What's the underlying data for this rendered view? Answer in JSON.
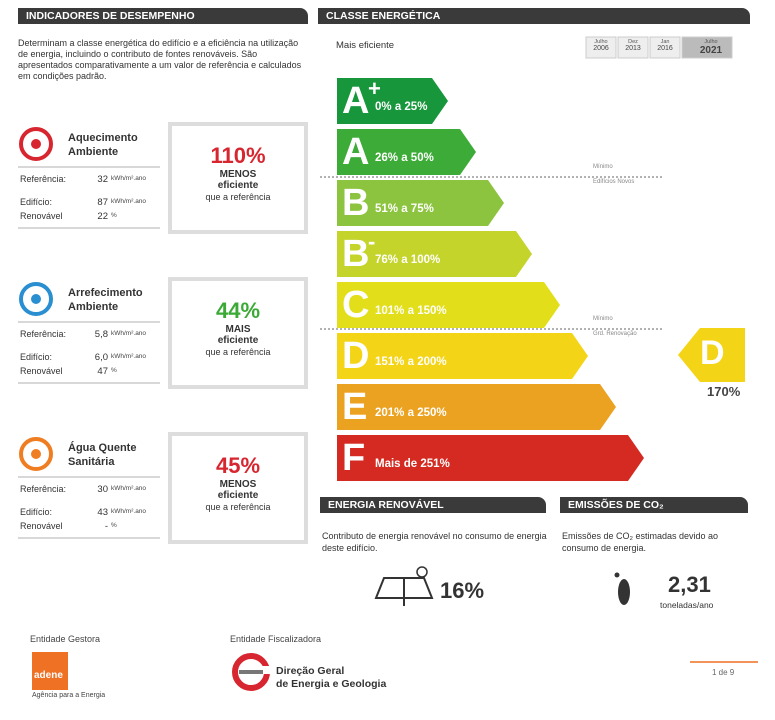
{
  "performance": {
    "title": "INDICADORES DE DESEMPENHO",
    "intro": "Determinam a classe energética do edifício e a eficiência na utilização de energia, incluindo o contributo de fontes renováveis. São apresentados comparativamente a um valor de referência e calculados em condições padrão.",
    "items": [
      {
        "name": "Aquecimento Ambiente",
        "rows": [
          {
            "label": "Referência:",
            "value": "32",
            "unit": "kWh/m².ano"
          },
          {
            "label": "Edifício:",
            "value": "87",
            "unit": "kWh/m².ano"
          },
          {
            "label": "Renovável",
            "value": "22",
            "unit": "%"
          }
        ],
        "percent": "110%",
        "comparison": "MENOS",
        "word": "eficiente",
        "ref": "que a referência",
        "color": "#d7262f"
      },
      {
        "name": "Arrefecimento Ambiente",
        "rows": [
          {
            "label": "Referência:",
            "value": "5,8",
            "unit": "kWh/m².ano"
          },
          {
            "label": "Edifício:",
            "value": "6,0",
            "unit": "kWh/m².ano"
          },
          {
            "label": "Renovável",
            "value": "47",
            "unit": "%"
          }
        ],
        "percent": "44%",
        "comparison": "MAIS",
        "word": "eficiente",
        "ref": "que a referência",
        "color": "#3aaa35"
      },
      {
        "name": "Água Quente Sanitária",
        "rows": [
          {
            "label": "Referência:",
            "value": "30",
            "unit": "kWh/m².ano"
          },
          {
            "label": "Edifício:",
            "value": "43",
            "unit": "kWh/m².ano"
          },
          {
            "label": "Renovável",
            "value": "-",
            "unit": "%"
          }
        ],
        "percent": "45%",
        "comparison": "MENOS",
        "word": "eficiente",
        "ref": "que a referência",
        "color": "#d7262f"
      }
    ]
  },
  "energy_class": {
    "title": "CLASSE ENERGÉTICA",
    "top_label": "Mais eficiente",
    "timeline": [
      {
        "month": "Julho",
        "year": "2006"
      },
      {
        "month": "Dez",
        "year": "2013"
      },
      {
        "month": "Jan",
        "year": "2016"
      },
      {
        "month": "Julho",
        "year": "2021"
      }
    ],
    "classes": [
      {
        "letter": "A",
        "sup": "+",
        "range": "0% a 25%",
        "color": "#17963c"
      },
      {
        "letter": "A",
        "range": "26% a 50%",
        "color": "#3dab37"
      },
      {
        "letter": "B",
        "range": "51% a 75%",
        "color": "#8cc43f"
      },
      {
        "letter": "B",
        "sup": "-",
        "range": "76% a 100%",
        "color": "#c4d42b"
      },
      {
        "letter": "C",
        "range": "101% a 150%",
        "color": "#e2df1a"
      },
      {
        "letter": "D",
        "range": "151% a 200%",
        "color": "#f4d417"
      },
      {
        "letter": "E",
        "range": "201% a 250%",
        "color": "#eca221"
      },
      {
        "letter": "F",
        "range": "Mais de 251%",
        "color": "#d52a22"
      }
    ],
    "markers": [
      {
        "line1": "Mínimo",
        "line2": "Edifícios Novos"
      },
      {
        "line1": "Mínimo",
        "line2": "Grd. Renovação"
      }
    ],
    "rating": {
      "letter": "D",
      "value": "170%"
    }
  },
  "renewable": {
    "title": "ENERGIA RENOVÁVEL",
    "text": "Contributo de energia renovável no consumo de energia deste edifício.",
    "value": "16%"
  },
  "emissions": {
    "title": "EMISSÕES DE CO₂",
    "text": "Emissões de CO₂ estimadas devido ao consumo de energia.",
    "value": "2,31",
    "unit": "toneladas/ano"
  },
  "footer": {
    "manager_label": "Entidade Gestora",
    "manager_logo": "adene",
    "manager_tagline": "Agência para a Energia",
    "supervisor_label": "Entidade Fiscalizadora",
    "supervisor_line1": "Direção Geral",
    "supervisor_line2": "de Energia e Geologia",
    "page": "1 de 9"
  }
}
